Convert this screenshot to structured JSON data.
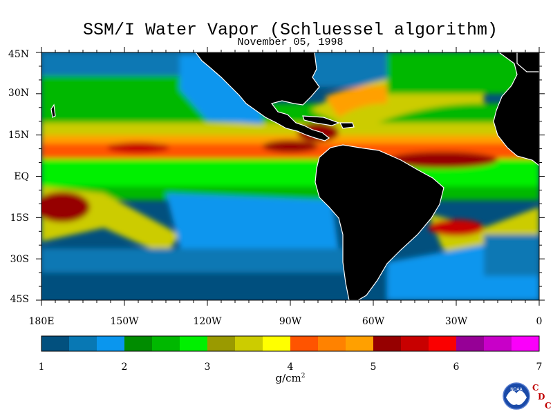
{
  "title": "SSM/I Water Vapor (Schluessel algorithm)",
  "subtitle": "November 05, 1998",
  "lat_labels": [
    "45N",
    "30N",
    "15N",
    "EQ",
    "15S",
    "30S",
    "45S"
  ],
  "lon_labels": [
    "180E",
    "150W",
    "120W",
    "90W",
    "60W",
    "30W",
    "0"
  ],
  "colorbar": {
    "labels": [
      "1",
      "2",
      "3",
      "4",
      "5",
      "6",
      "7"
    ],
    "units_main": "g/cm",
    "units_sup": "2",
    "colors": [
      "#02507e",
      "#0878b4",
      "#0a96ee",
      "#008c00",
      "#00b800",
      "#00f000",
      "#9a9a00",
      "#cccc00",
      "#ffff00",
      "#ff5400",
      "#ff8200",
      "#ffa000",
      "#960000",
      "#c80000",
      "#fa0000",
      "#960096",
      "#c800c8",
      "#fa00fa"
    ]
  },
  "colors": {
    "land": "#000000",
    "coast": "#ffffff",
    "ocean_dry": "#02507e",
    "ocean_mid": "#0a96ee"
  },
  "logo": {
    "text_noaa": "NOAA",
    "letters": [
      "C",
      "D",
      "C"
    ]
  }
}
